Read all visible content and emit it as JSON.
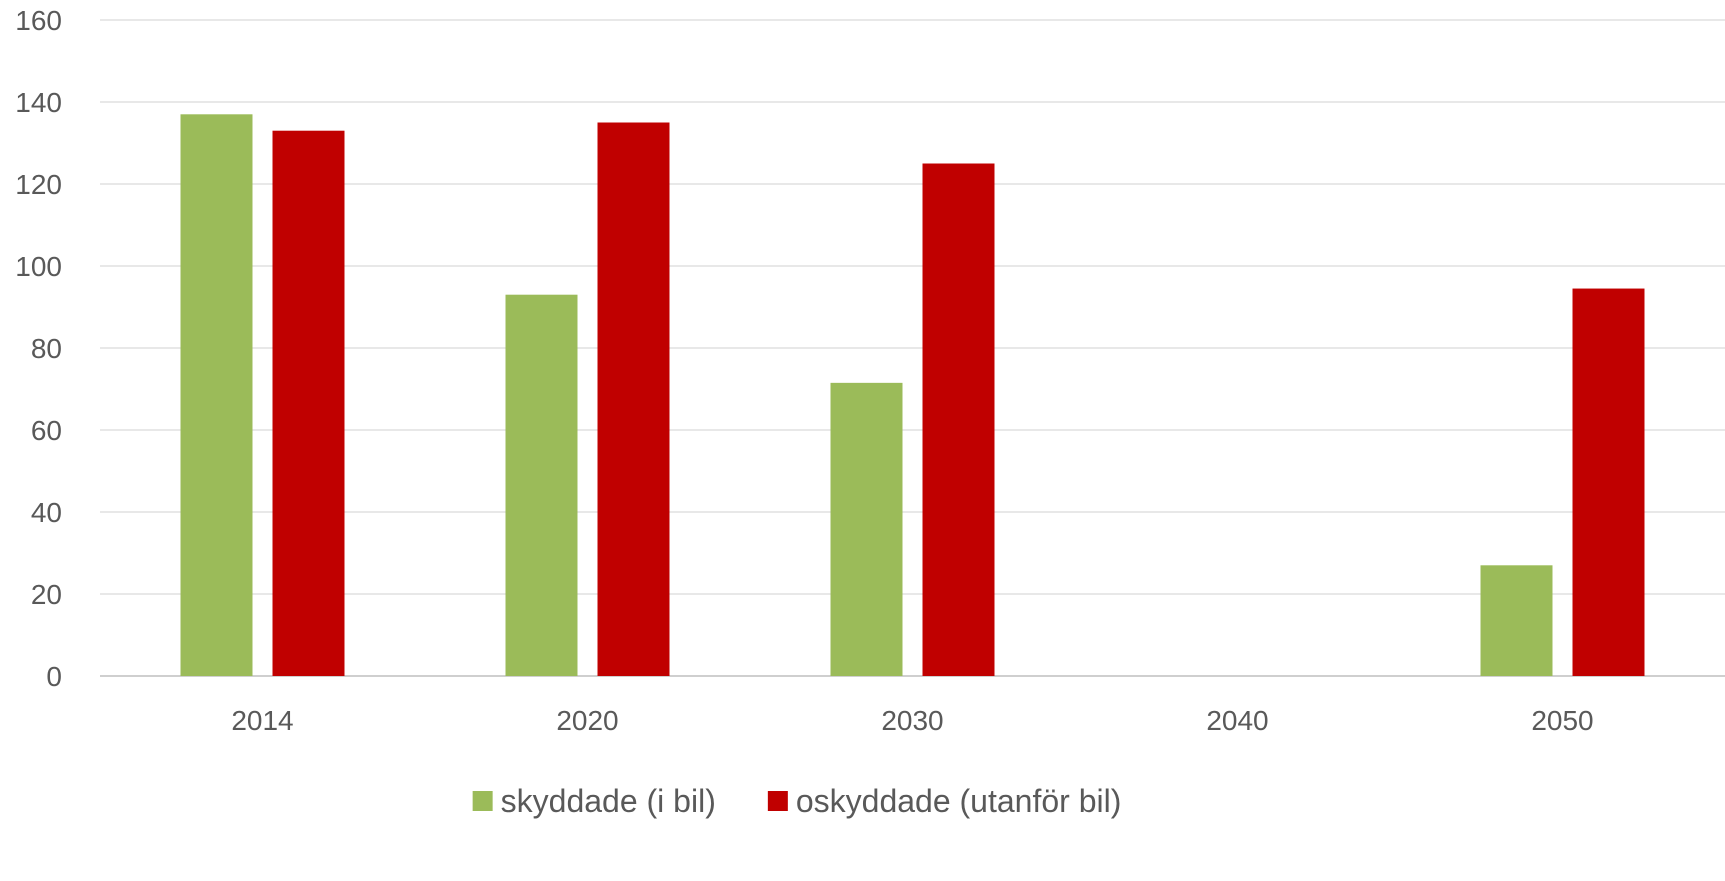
{
  "chart_data": {
    "type": "bar",
    "title": "",
    "xlabel": "",
    "ylabel": "",
    "categories": [
      "2014",
      "2020",
      "2030",
      "2040",
      "2050"
    ],
    "series": [
      {
        "name": "skyddade (i bil)",
        "color": "#9BBB59",
        "values": [
          137,
          93,
          71.5,
          null,
          27
        ]
      },
      {
        "name": "oskyddade (utanför bil)",
        "color": "#C00000",
        "values": [
          133,
          135,
          125,
          null,
          94.5
        ]
      }
    ],
    "ylim": [
      0,
      160
    ],
    "yticks": [
      "0",
      "20",
      "40",
      "60",
      "80",
      "100",
      "120",
      "140",
      "160"
    ],
    "grid": true,
    "legend_position": "bottom"
  }
}
